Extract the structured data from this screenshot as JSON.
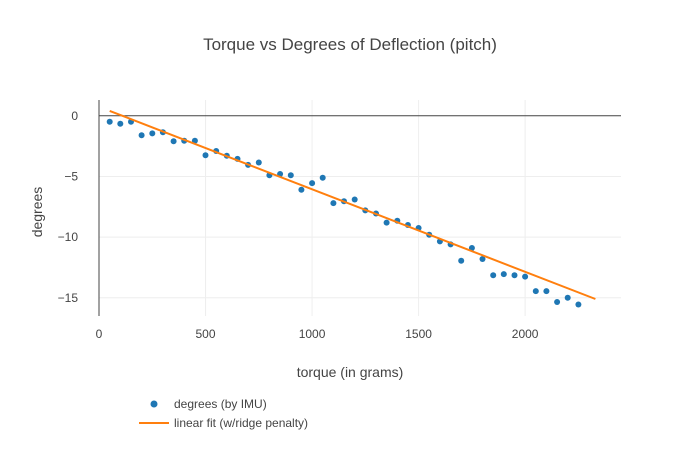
{
  "chart_data": {
    "type": "scatter",
    "title": "Torque vs Degrees of Deflection (pitch)",
    "xlabel": "torque (in grams)",
    "ylabel": "degrees",
    "xlim": [
      0,
      2450
    ],
    "ylim": [
      -16.5,
      1.3
    ],
    "x_ticks": [
      0,
      500,
      1000,
      1500,
      2000
    ],
    "x_tick_labels": [
      "0",
      "500",
      "1000",
      "1500",
      "2000"
    ],
    "y_ticks": [
      0,
      -5,
      -10,
      -15
    ],
    "y_tick_labels": [
      "0",
      "−5",
      "−10",
      "−15"
    ],
    "grid": true,
    "legend_position": "bottom-left",
    "series": [
      {
        "name": "degrees (by IMU)",
        "mode": "markers",
        "color": "#1f77b4",
        "points": [
          [
            50,
            -0.5
          ],
          [
            100,
            -0.65
          ],
          [
            150,
            -0.5
          ],
          [
            200,
            -1.6
          ],
          [
            250,
            -1.45
          ],
          [
            300,
            -1.35
          ],
          [
            350,
            -2.1
          ],
          [
            400,
            -2.05
          ],
          [
            450,
            -2.05
          ],
          [
            500,
            -3.25
          ],
          [
            550,
            -2.9
          ],
          [
            600,
            -3.3
          ],
          [
            650,
            -3.55
          ],
          [
            700,
            -4.05
          ],
          [
            750,
            -3.85
          ],
          [
            800,
            -4.9
          ],
          [
            850,
            -4.8
          ],
          [
            900,
            -4.9
          ],
          [
            950,
            -6.1
          ],
          [
            1000,
            -5.55
          ],
          [
            1050,
            -5.1
          ],
          [
            1100,
            -7.2
          ],
          [
            1150,
            -7.05
          ],
          [
            1200,
            -6.9
          ],
          [
            1250,
            -7.8
          ],
          [
            1300,
            -8.05
          ],
          [
            1350,
            -8.8
          ],
          [
            1400,
            -8.65
          ],
          [
            1450,
            -9.0
          ],
          [
            1500,
            -9.25
          ],
          [
            1550,
            -9.8
          ],
          [
            1600,
            -10.35
          ],
          [
            1650,
            -10.6
          ],
          [
            1700,
            -11.95
          ],
          [
            1750,
            -10.9
          ],
          [
            1800,
            -11.8
          ],
          [
            1850,
            -13.15
          ],
          [
            1900,
            -13.05
          ],
          [
            1950,
            -13.15
          ],
          [
            2000,
            -13.25
          ],
          [
            2050,
            -14.45
          ],
          [
            2100,
            -14.45
          ],
          [
            2150,
            -15.35
          ],
          [
            2200,
            -15.0
          ],
          [
            2250,
            -15.55
          ]
        ]
      },
      {
        "name": "linear fit (w/ridge penalty)",
        "mode": "lines",
        "color": "#ff7f0e",
        "points": [
          [
            50,
            0.4
          ],
          [
            2330,
            -15.1
          ]
        ]
      }
    ]
  }
}
